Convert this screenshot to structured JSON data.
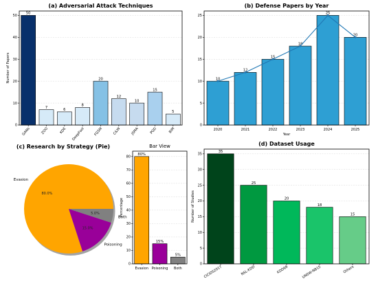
{
  "chart_data": [
    {
      "id": "attack",
      "type": "bar",
      "title": "(a) Adversarial Attack Techniques",
      "xlabel": "",
      "ylabel": "Number of Papers",
      "categories": [
        "GANs",
        "ZOO",
        "KDE",
        "DeepFool",
        "FGSM",
        "C&W",
        "JSMA",
        "PGD",
        "BIM"
      ],
      "values": [
        50,
        7,
        6,
        8,
        20,
        12,
        10,
        15,
        5
      ],
      "colors": [
        "#08306b",
        "#d6eaf8",
        "#d6eaf8",
        "#d6eaf8",
        "#85c1e5",
        "#c6dbef",
        "#c6dbef",
        "#a9d0ee",
        "#d6eaf8"
      ],
      "ylim": [
        0,
        52
      ],
      "yticks": [
        0,
        10,
        20,
        30,
        40,
        50
      ],
      "grid": true
    },
    {
      "id": "defense",
      "type": "bar",
      "title": "(b) Defense Papers by Year",
      "xlabel": "Year",
      "ylabel": "",
      "categories": [
        "2020",
        "2021",
        "2022",
        "2023",
        "2024",
        "2025"
      ],
      "values": [
        10,
        12,
        15,
        18,
        25,
        20
      ],
      "bar_color": "#2e9fd3",
      "line_color": "#1f77b4",
      "ylim": [
        0,
        26
      ],
      "yticks": [
        0,
        5,
        10,
        15,
        20,
        25
      ],
      "grid": true
    },
    {
      "id": "strategy-pie",
      "type": "pie",
      "title": "(c) Research by Strategy (Pie)",
      "labels": [
        "Evasion",
        "Poisoning",
        "Both"
      ],
      "values": [
        80,
        15,
        5
      ],
      "pct_labels": [
        "80.0%",
        "15.0%",
        "5.0%"
      ],
      "colors": [
        "#ffa500",
        "#990099",
        "#808080"
      ]
    },
    {
      "id": "strategy-bar",
      "type": "bar",
      "title": "Bar View",
      "xlabel": "",
      "ylabel": "Percentage",
      "categories": [
        "Evasion",
        "Poisoning",
        "Both"
      ],
      "values": [
        80,
        15,
        5
      ],
      "value_labels": [
        "80%",
        "15%",
        "5%"
      ],
      "colors": [
        "#ffa500",
        "#990099",
        "#808080"
      ],
      "ylim": [
        0,
        84
      ],
      "yticks": [
        0,
        10,
        20,
        30,
        40,
        50,
        60,
        70,
        80
      ],
      "grid": true
    },
    {
      "id": "dataset",
      "type": "bar",
      "title": "(d) Dataset Usage",
      "xlabel": "",
      "ylabel": "Number of Studies",
      "categories": [
        "CICIDS2017",
        "NSL-KDD",
        "KDD99",
        "UNSW-NB15",
        "Others"
      ],
      "values": [
        35,
        25,
        20,
        18,
        15
      ],
      "colors": [
        "#00441b",
        "#009940",
        "#00b85a",
        "#1ac46a",
        "#66cc88"
      ],
      "ylim": [
        0,
        36.5
      ],
      "yticks": [
        0,
        5,
        10,
        15,
        20,
        25,
        30,
        35
      ],
      "grid": true
    }
  ]
}
